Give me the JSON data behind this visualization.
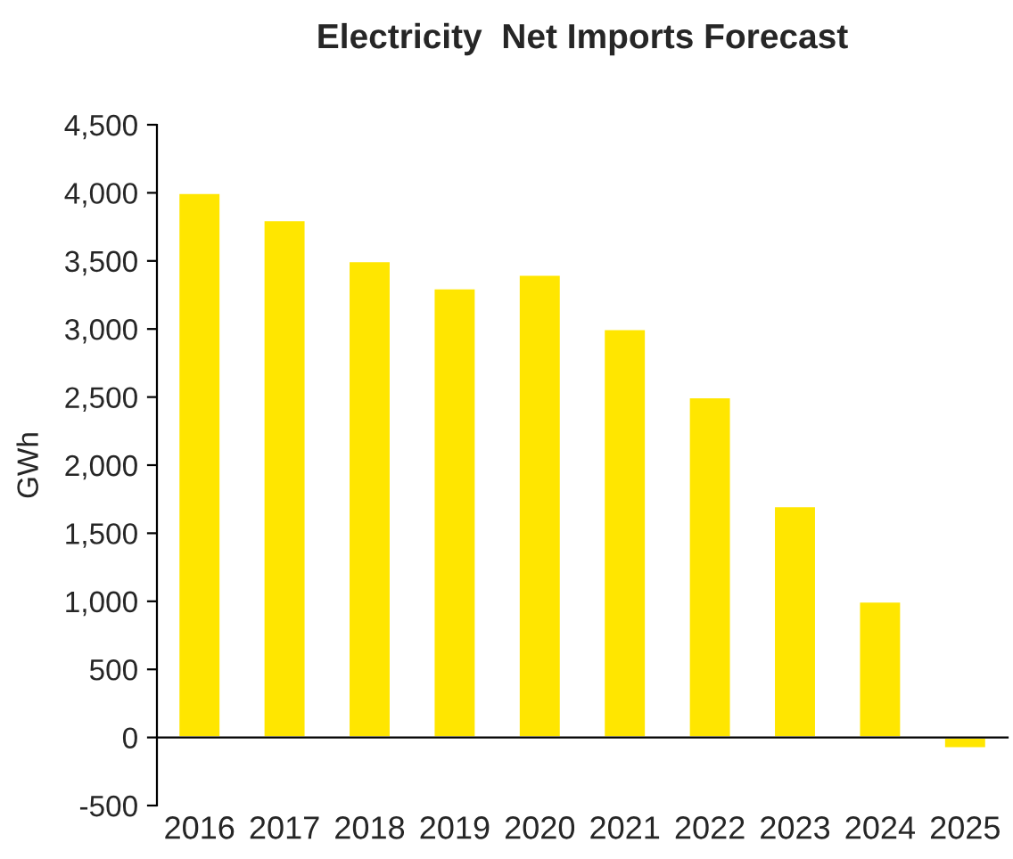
{
  "chart_data": {
    "type": "bar",
    "title": "Electricity  Net Imports Forecast",
    "ylabel": "GWh",
    "categories": [
      "2016",
      "2017",
      "2018",
      "2019",
      "2020",
      "2021",
      "2022",
      "2023",
      "2024",
      "2025"
    ],
    "values": [
      4000,
      3800,
      3500,
      3300,
      3400,
      3000,
      2500,
      1700,
      1000,
      -80
    ],
    "color": "#ffe600",
    "ylim": [
      -500,
      4500
    ],
    "yticks": [
      -500,
      0,
      500,
      {
        "value": 1000,
        "label": "1,000"
      },
      {
        "value": 1500,
        "label": "1,500"
      },
      {
        "value": 2000,
        "label": "2,000"
      },
      {
        "value": 2500,
        "label": "2,500"
      },
      {
        "value": 3000,
        "label": "3,000"
      },
      {
        "value": 3500,
        "label": "3,500"
      },
      {
        "value": 4000,
        "label": "4,000"
      },
      {
        "value": 4500,
        "label": "4,500"
      }
    ],
    "grid": false,
    "legend": false
  }
}
